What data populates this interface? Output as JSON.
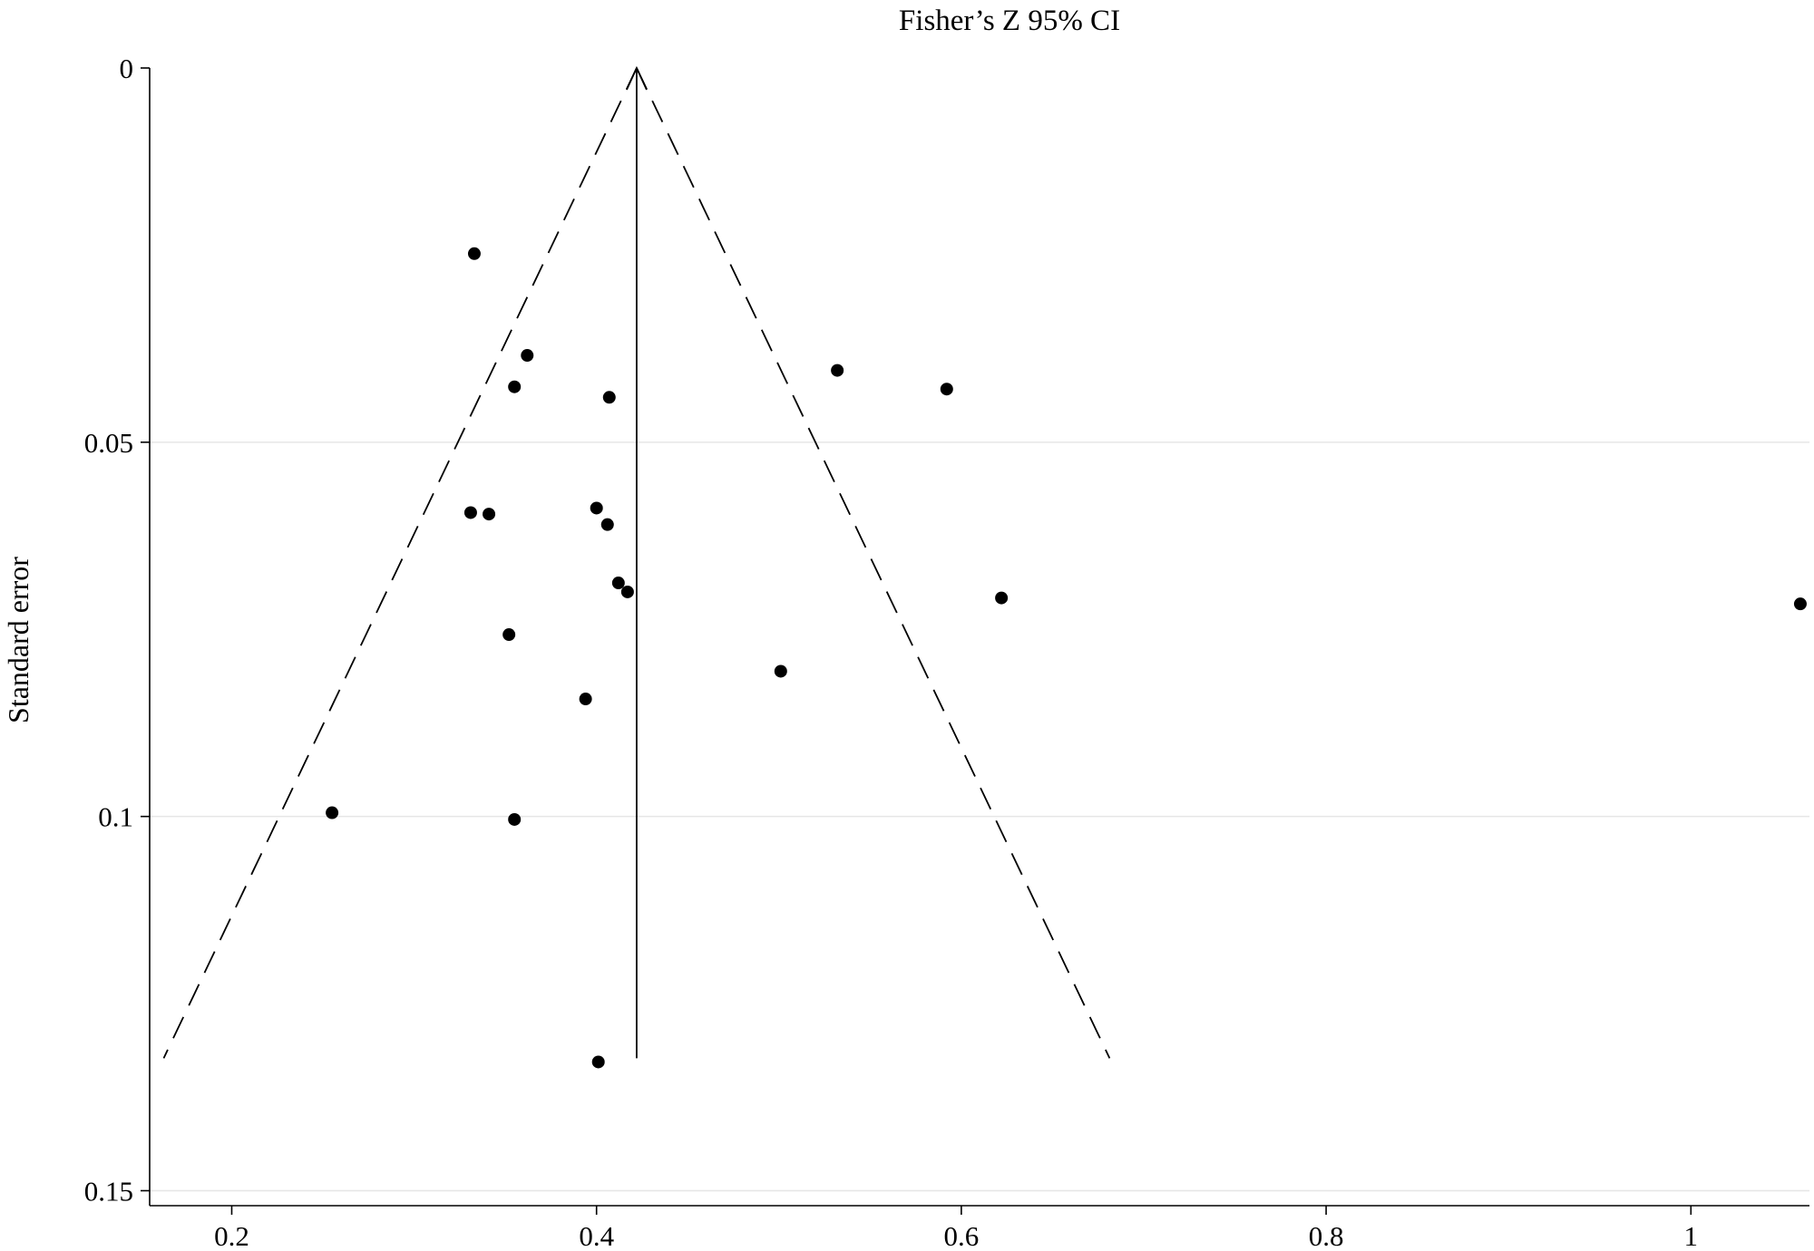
{
  "chart_data": {
    "type": "scatter",
    "title": "Fisher’s Z 95% CI",
    "xlabel": "",
    "ylabel": "Standard error",
    "xlim": [
      0.155,
      1.065
    ],
    "ylim": [
      0,
      0.152
    ],
    "y_inverted": true,
    "xticks": [
      {
        "value": 0.2,
        "label": "0.2"
      },
      {
        "value": 0.4,
        "label": "0.4"
      },
      {
        "value": 0.6,
        "label": "0.6"
      },
      {
        "value": 0.8,
        "label": "0.8"
      },
      {
        "value": 1.0,
        "label": "1"
      }
    ],
    "yticks": [
      {
        "value": 0,
        "label": "0"
      },
      {
        "value": 0.05,
        "label": "0.05"
      },
      {
        "value": 0.1,
        "label": "0.1"
      },
      {
        "value": 0.15,
        "label": "0.15"
      }
    ],
    "grid": {
      "horizontal": true,
      "vertical": false
    },
    "pooled_estimate": 0.422,
    "funnel": {
      "center": 0.422,
      "se_max": 0.1323
    },
    "points": [
      {
        "x": 0.333,
        "y": 0.0248
      },
      {
        "x": 0.362,
        "y": 0.0384
      },
      {
        "x": 0.355,
        "y": 0.0426
      },
      {
        "x": 0.407,
        "y": 0.044
      },
      {
        "x": 0.532,
        "y": 0.0404
      },
      {
        "x": 0.592,
        "y": 0.0429
      },
      {
        "x": 0.331,
        "y": 0.0594
      },
      {
        "x": 0.341,
        "y": 0.0596
      },
      {
        "x": 0.4,
        "y": 0.0588
      },
      {
        "x": 0.406,
        "y": 0.061
      },
      {
        "x": 0.412,
        "y": 0.0688
      },
      {
        "x": 0.417,
        "y": 0.07
      },
      {
        "x": 0.622,
        "y": 0.0708
      },
      {
        "x": 1.06,
        "y": 0.0716
      },
      {
        "x": 0.352,
        "y": 0.0757
      },
      {
        "x": 0.501,
        "y": 0.0806
      },
      {
        "x": 0.394,
        "y": 0.0843
      },
      {
        "x": 0.255,
        "y": 0.0995
      },
      {
        "x": 0.355,
        "y": 0.1004
      },
      {
        "x": 0.401,
        "y": 0.1328
      }
    ]
  }
}
